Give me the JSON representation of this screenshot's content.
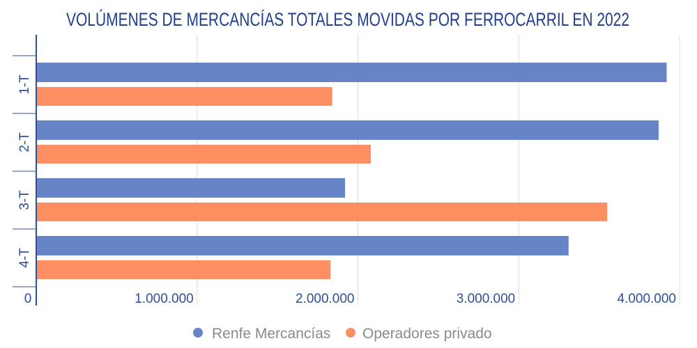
{
  "chart_data": {
    "type": "bar",
    "orientation": "horizontal",
    "title": "VOLÚMENES DE MERCANCÍAS TOTALES MOVIDAS POR FERROCARRIL EN 2022",
    "categories": [
      "1-T",
      "2-T",
      "3-T",
      "4-T"
    ],
    "series": [
      {
        "name": "Renfe Mercancías",
        "color": "#6785c6",
        "values": [
          3920000,
          3870000,
          1920000,
          3310000
        ]
      },
      {
        "name": "Operadores privado",
        "color": "#fe8f62",
        "values": [
          1840000,
          2080000,
          3550000,
          1830000
        ]
      }
    ],
    "xlim": [
      0,
      4000000
    ],
    "xticks": [
      0,
      1000000,
      2000000,
      3000000,
      4000000
    ],
    "xtick_labels": [
      "0",
      "1.000.000",
      "2.000.000",
      "3.000.000",
      "4.000.000"
    ],
    "xlabel": "",
    "ylabel": "",
    "grid": true,
    "legend": "bottom"
  }
}
